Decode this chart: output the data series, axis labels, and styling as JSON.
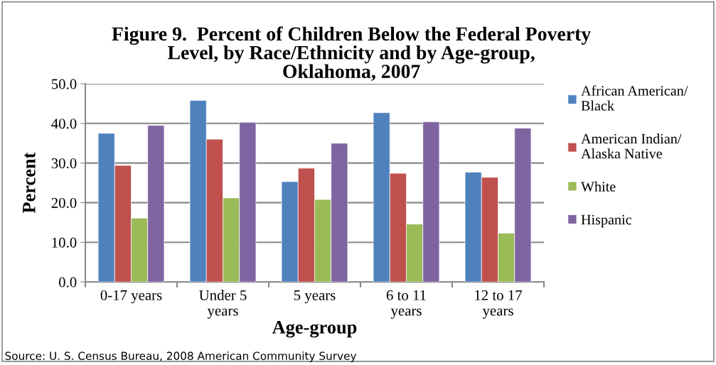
{
  "chart_data": {
    "type": "bar",
    "title": "Figure 9.  Percent of Children Below the Federal Poverty\nLevel, by Race/Ethnicity and by Age-group,\nOklahoma, 2007",
    "xlabel": "Age-group",
    "ylabel": "Percent",
    "categories": [
      "0-17 years",
      "Under 5\nyears",
      "5 years",
      "6 to 11\nyears",
      "12 to 17\nyears"
    ],
    "series": [
      {
        "name": "African American/\nBlack",
        "color": "#4f81bd",
        "values": [
          37.5,
          45.8,
          25.3,
          42.7,
          27.7
        ]
      },
      {
        "name": "American Indian/\nAlaska Native",
        "color": "#c0504d",
        "values": [
          29.4,
          36.0,
          28.7,
          27.4,
          26.4
        ]
      },
      {
        "name": "White",
        "color": "#9bbb59",
        "values": [
          16.1,
          21.2,
          20.8,
          14.6,
          12.3
        ]
      },
      {
        "name": "Hispanic",
        "color": "#8064a2",
        "values": [
          39.5,
          40.3,
          35.0,
          40.4,
          38.8
        ]
      }
    ],
    "ylim": [
      0,
      50
    ],
    "yticks": [
      {
        "value": 0,
        "label": "0.0"
      },
      {
        "value": 10,
        "label": "10.0"
      },
      {
        "value": 20,
        "label": "20.0"
      },
      {
        "value": 30,
        "label": "30.0"
      },
      {
        "value": 40,
        "label": "40.0"
      },
      {
        "value": 50,
        "label": "50.0"
      }
    ],
    "grid": "y",
    "legend": "right",
    "annotations": [
      "Source: U. S. Census Bureau, 2008 American Community Survey"
    ]
  }
}
